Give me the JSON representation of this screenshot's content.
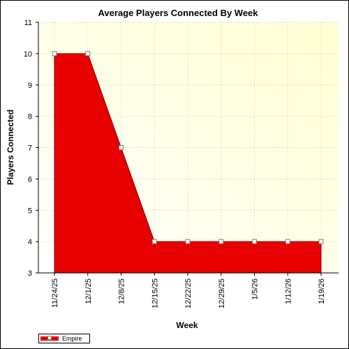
{
  "chart_data": {
    "type": "area",
    "title": "Average Players Connected By Week",
    "xlabel": "Week",
    "ylabel": "Players Connected",
    "categories": [
      "11/24/25",
      "12/1/25",
      "12/8/25",
      "12/15/25",
      "12/22/25",
      "12/29/25",
      "1/5/26",
      "1/12/26",
      "1/19/26"
    ],
    "series": [
      {
        "name": "Empire",
        "values": [
          10,
          10,
          7,
          4,
          4,
          4,
          4,
          4,
          4
        ]
      }
    ],
    "ylim": [
      3,
      11
    ],
    "yticks": [
      3,
      4,
      5,
      6,
      7,
      8,
      9,
      10,
      11
    ],
    "grid": true,
    "legend_position": "bottom-left",
    "colors": {
      "series_fill": "#e60000",
      "plot_background_start": "#ffffff",
      "plot_background_end": "#ffffd2",
      "grid": "#c8c8a0",
      "marker_fill": "#ffffff",
      "marker_stroke": "#7a7a7a"
    }
  }
}
